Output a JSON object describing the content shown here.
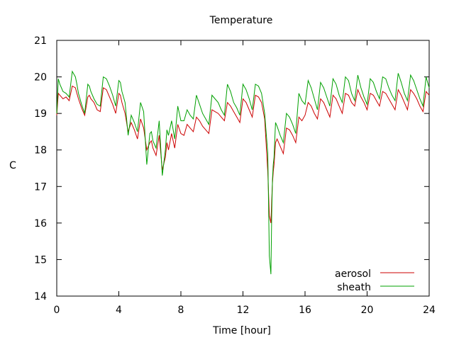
{
  "chart_data": {
    "type": "line",
    "title": "Temperature",
    "xlabel": "Time [hour]",
    "ylabel": "C",
    "xlim": [
      0,
      24
    ],
    "ylim": [
      14,
      21
    ],
    "xticks": [
      0,
      4,
      8,
      12,
      16,
      20,
      24
    ],
    "yticks": [
      14,
      15,
      16,
      17,
      18,
      19,
      20,
      21
    ],
    "grid": false,
    "legend_position": "bottom-right",
    "series": [
      {
        "name": "aerosol",
        "color": "#cc0000",
        "x": [
          0.0,
          0.1,
          0.2,
          0.3,
          0.4,
          0.6,
          0.8,
          1.0,
          1.2,
          1.3,
          1.4,
          1.6,
          1.8,
          2.0,
          2.1,
          2.2,
          2.4,
          2.6,
          2.8,
          3.0,
          3.2,
          3.4,
          3.6,
          3.8,
          4.0,
          4.1,
          4.2,
          4.4,
          4.6,
          4.8,
          5.0,
          5.2,
          5.4,
          5.6,
          5.8,
          6.0,
          6.1,
          6.2,
          6.4,
          6.6,
          6.8,
          7.0,
          7.1,
          7.2,
          7.4,
          7.6,
          7.8,
          8.0,
          8.2,
          8.4,
          8.6,
          8.8,
          9.0,
          9.2,
          9.4,
          9.6,
          9.8,
          10.0,
          10.2,
          10.4,
          10.6,
          10.8,
          11.0,
          11.2,
          11.4,
          11.6,
          11.8,
          12.0,
          12.2,
          12.4,
          12.6,
          12.8,
          13.0,
          13.2,
          13.4,
          13.6,
          13.7,
          13.8,
          13.85,
          13.9,
          13.95,
          14.0,
          14.1,
          14.2,
          14.4,
          14.6,
          14.8,
          15.0,
          15.2,
          15.4,
          15.6,
          15.8,
          16.0,
          16.2,
          16.4,
          16.6,
          16.8,
          17.0,
          17.2,
          17.4,
          17.6,
          17.8,
          18.0,
          18.2,
          18.4,
          18.6,
          18.8,
          19.0,
          19.2,
          19.4,
          19.6,
          19.8,
          20.0,
          20.2,
          20.4,
          20.6,
          20.8,
          21.0,
          21.2,
          21.4,
          21.6,
          21.8,
          22.0,
          22.2,
          22.4,
          22.6,
          22.8,
          23.0,
          23.2,
          23.4,
          23.6,
          23.8,
          24.0
        ],
        "y": [
          18.95,
          19.55,
          19.5,
          19.45,
          19.4,
          19.45,
          19.35,
          19.75,
          19.7,
          19.55,
          19.4,
          19.15,
          18.95,
          19.45,
          19.5,
          19.4,
          19.3,
          19.1,
          19.05,
          19.7,
          19.65,
          19.45,
          19.25,
          19.0,
          19.55,
          19.5,
          19.3,
          19.0,
          18.5,
          18.75,
          18.55,
          18.3,
          18.85,
          18.6,
          18.0,
          18.2,
          18.25,
          18.05,
          17.85,
          18.4,
          17.45,
          17.8,
          18.2,
          18.0,
          18.45,
          18.05,
          18.7,
          18.45,
          18.4,
          18.7,
          18.6,
          18.5,
          18.9,
          18.8,
          18.65,
          18.55,
          18.45,
          19.1,
          19.05,
          19.0,
          18.9,
          18.8,
          19.3,
          19.2,
          19.05,
          18.9,
          18.75,
          19.4,
          19.3,
          19.1,
          18.9,
          19.5,
          19.45,
          19.3,
          18.85,
          17.4,
          16.2,
          16.0,
          16.6,
          17.1,
          17.4,
          17.6,
          18.2,
          18.3,
          18.1,
          17.9,
          18.6,
          18.55,
          18.4,
          18.2,
          18.9,
          18.8,
          18.95,
          19.3,
          19.2,
          19.0,
          18.85,
          19.4,
          19.3,
          19.1,
          18.9,
          19.5,
          19.4,
          19.2,
          19.0,
          19.55,
          19.5,
          19.3,
          19.2,
          19.65,
          19.45,
          19.3,
          19.1,
          19.55,
          19.5,
          19.35,
          19.2,
          19.6,
          19.55,
          19.4,
          19.25,
          19.1,
          19.65,
          19.5,
          19.3,
          19.1,
          19.65,
          19.55,
          19.4,
          19.2,
          19.05,
          19.6,
          19.5
        ]
      },
      {
        "name": "sheath",
        "color": "#00a000",
        "x": [
          0.0,
          0.1,
          0.2,
          0.3,
          0.4,
          0.6,
          0.8,
          1.0,
          1.2,
          1.3,
          1.4,
          1.6,
          1.8,
          2.0,
          2.1,
          2.2,
          2.4,
          2.6,
          2.8,
          3.0,
          3.2,
          3.4,
          3.6,
          3.8,
          4.0,
          4.1,
          4.2,
          4.4,
          4.6,
          4.8,
          5.0,
          5.2,
          5.4,
          5.6,
          5.8,
          6.0,
          6.1,
          6.2,
          6.4,
          6.6,
          6.8,
          7.0,
          7.1,
          7.2,
          7.4,
          7.6,
          7.8,
          8.0,
          8.2,
          8.4,
          8.6,
          8.8,
          9.0,
          9.2,
          9.4,
          9.6,
          9.8,
          10.0,
          10.2,
          10.4,
          10.6,
          10.8,
          11.0,
          11.2,
          11.4,
          11.6,
          11.8,
          12.0,
          12.2,
          12.4,
          12.6,
          12.8,
          13.0,
          13.2,
          13.4,
          13.6,
          13.7,
          13.8,
          13.85,
          13.9,
          13.95,
          14.0,
          14.1,
          14.2,
          14.4,
          14.6,
          14.8,
          15.0,
          15.2,
          15.4,
          15.6,
          15.8,
          16.0,
          16.2,
          16.4,
          16.6,
          16.8,
          17.0,
          17.2,
          17.4,
          17.6,
          17.8,
          18.0,
          18.2,
          18.4,
          18.6,
          18.8,
          19.0,
          19.2,
          19.4,
          19.6,
          19.8,
          20.0,
          20.2,
          20.4,
          20.6,
          20.8,
          21.0,
          21.2,
          21.4,
          21.6,
          21.8,
          22.0,
          22.2,
          22.4,
          22.6,
          22.8,
          23.0,
          23.2,
          23.4,
          23.6,
          23.8,
          24.0
        ],
        "y": [
          19.0,
          19.95,
          19.8,
          19.7,
          19.6,
          19.55,
          19.45,
          20.15,
          20.0,
          19.8,
          19.55,
          19.25,
          19.0,
          19.8,
          19.75,
          19.6,
          19.4,
          19.25,
          19.2,
          20.0,
          19.95,
          19.75,
          19.5,
          19.2,
          19.9,
          19.85,
          19.6,
          19.3,
          18.4,
          18.95,
          18.75,
          18.5,
          19.3,
          19.05,
          17.6,
          18.45,
          18.5,
          18.25,
          18.05,
          18.8,
          17.3,
          18.0,
          18.55,
          18.4,
          18.8,
          18.3,
          19.2,
          18.8,
          18.8,
          19.1,
          18.95,
          18.85,
          19.5,
          19.25,
          19.0,
          18.85,
          18.7,
          19.5,
          19.4,
          19.3,
          19.1,
          18.95,
          19.8,
          19.6,
          19.3,
          19.15,
          18.95,
          19.8,
          19.65,
          19.4,
          19.1,
          19.8,
          19.75,
          19.55,
          19.0,
          17.9,
          15.1,
          14.6,
          16.2,
          17.2,
          17.6,
          17.8,
          18.75,
          18.65,
          18.4,
          18.2,
          19.0,
          18.9,
          18.7,
          18.45,
          19.55,
          19.35,
          19.25,
          19.9,
          19.7,
          19.4,
          19.1,
          19.85,
          19.7,
          19.45,
          19.2,
          19.95,
          19.8,
          19.5,
          19.3,
          20.0,
          19.9,
          19.55,
          19.35,
          20.05,
          19.7,
          19.45,
          19.25,
          19.95,
          19.85,
          19.6,
          19.4,
          20.0,
          19.95,
          19.7,
          19.5,
          19.35,
          20.1,
          19.85,
          19.55,
          19.35,
          20.05,
          19.9,
          19.65,
          19.4,
          19.2,
          20.0,
          19.7
        ]
      }
    ]
  }
}
